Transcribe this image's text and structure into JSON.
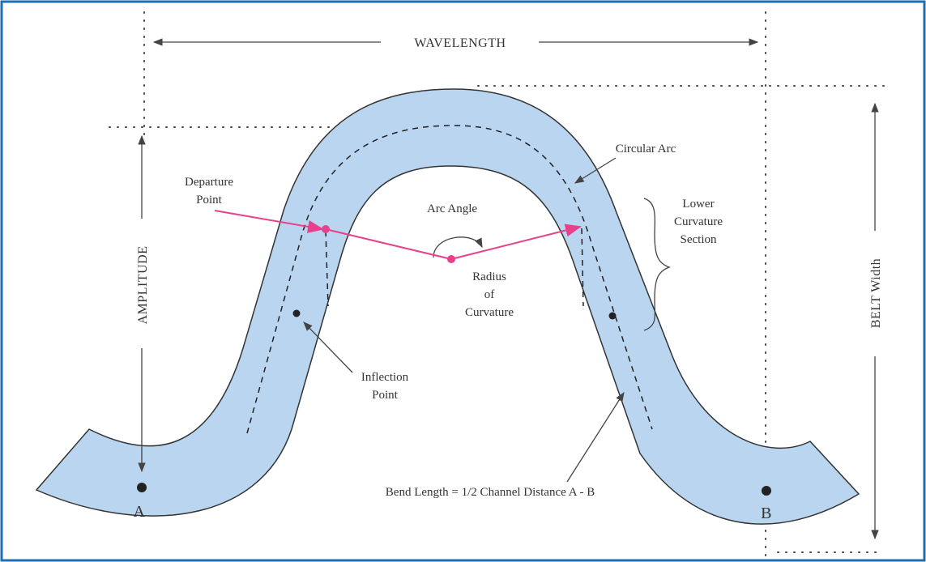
{
  "diagram": {
    "wavelength": "WAVELENGTH",
    "amplitude": "AMPLITUDE",
    "belt_width": "BELT Width",
    "circular_arc": "Circular Arc",
    "departure_point": [
      "Departure",
      "Point"
    ],
    "arc_angle": "Arc Angle",
    "radius_of_curvature": [
      "Radius",
      "of",
      "Curvature"
    ],
    "lower_curvature_section": [
      "Lower",
      "Curvature",
      "Section"
    ],
    "inflection_point": [
      "Inflection",
      "Point"
    ],
    "bend_length": "Bend Length = 1/2 Channel Distance A - B",
    "point_a": "A",
    "point_b": "B"
  }
}
